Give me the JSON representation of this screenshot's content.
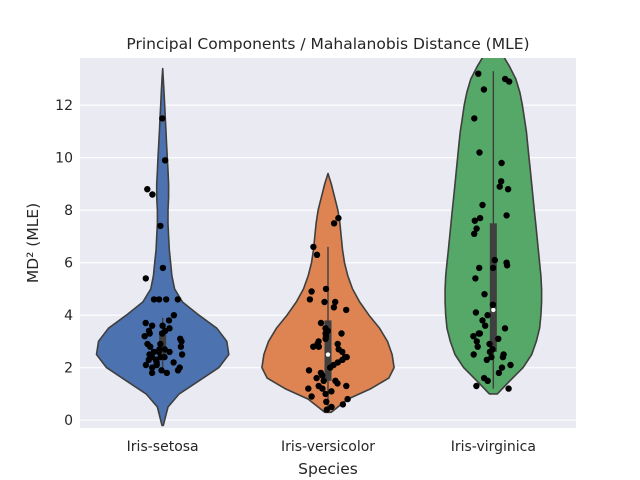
{
  "chart_data": {
    "type": "violin",
    "title": "Principal Components / Mahalanobis Distance (MLE)",
    "xlabel": "Species",
    "ylabel": "MD² (MLE)",
    "categories": [
      "Iris-setosa",
      "Iris-versicolor",
      "Iris-virginica"
    ],
    "ylim": [
      -0.3,
      13.8
    ],
    "yticks": [
      0,
      2,
      4,
      6,
      8,
      10,
      12
    ],
    "grid": true,
    "colors": [
      "#4c72b0",
      "#dd8452",
      "#55a868"
    ],
    "background": "#eaeaf2",
    "violins": [
      {
        "category": "Iris-setosa",
        "color": "#4c72b0",
        "profile": [
          [
            -0.2,
            0.01
          ],
          [
            0.5,
            0.08
          ],
          [
            1.0,
            0.25
          ],
          [
            1.5,
            0.55
          ],
          [
            2.0,
            0.85
          ],
          [
            2.5,
            1.0
          ],
          [
            3.0,
            0.97
          ],
          [
            3.5,
            0.82
          ],
          [
            4.0,
            0.55
          ],
          [
            4.5,
            0.3
          ],
          [
            5.0,
            0.18
          ],
          [
            5.5,
            0.14
          ],
          [
            6.0,
            0.12
          ],
          [
            6.5,
            0.1
          ],
          [
            7.0,
            0.09
          ],
          [
            7.5,
            0.08
          ],
          [
            8.0,
            0.08
          ],
          [
            8.5,
            0.09
          ],
          [
            9.0,
            0.09
          ],
          [
            9.5,
            0.08
          ],
          [
            10.0,
            0.07
          ],
          [
            10.5,
            0.06
          ],
          [
            11.0,
            0.05
          ],
          [
            11.5,
            0.04
          ],
          [
            12.0,
            0.03
          ],
          [
            12.5,
            0.02
          ],
          [
            13.0,
            0.01
          ],
          [
            13.4,
            0.0
          ]
        ],
        "box": {
          "q1": 2.4,
          "q3": 3.4,
          "median": 2.7,
          "whisker_low": 1.8,
          "whisker_high": 3.9
        },
        "points": [
          11.5,
          9.9,
          8.8,
          8.6,
          7.4,
          5.8,
          5.4,
          4.6,
          4.6,
          4.6,
          4.6,
          4.0,
          3.8,
          3.7,
          3.6,
          3.6,
          3.5,
          3.4,
          3.4,
          3.3,
          3.3,
          3.2,
          3.1,
          3.0,
          2.9,
          2.9,
          2.8,
          2.8,
          2.7,
          2.7,
          2.6,
          2.6,
          2.5,
          2.5,
          2.4,
          2.4,
          2.4,
          2.3,
          2.3,
          2.2,
          2.2,
          2.1,
          2.1,
          2.0,
          2.0,
          1.9,
          1.9,
          1.8,
          1.8,
          2.6
        ]
      },
      {
        "category": "Iris-versicolor",
        "color": "#dd8452",
        "profile": [
          [
            0.3,
            0.05
          ],
          [
            0.8,
            0.3
          ],
          [
            1.2,
            0.65
          ],
          [
            1.6,
            0.92
          ],
          [
            2.0,
            1.0
          ],
          [
            2.5,
            0.97
          ],
          [
            3.0,
            0.9
          ],
          [
            3.5,
            0.78
          ],
          [
            4.0,
            0.62
          ],
          [
            4.5,
            0.48
          ],
          [
            5.0,
            0.37
          ],
          [
            5.5,
            0.3
          ],
          [
            6.0,
            0.25
          ],
          [
            6.5,
            0.22
          ],
          [
            7.0,
            0.2
          ],
          [
            7.5,
            0.18
          ],
          [
            8.0,
            0.15
          ],
          [
            8.5,
            0.1
          ],
          [
            9.0,
            0.05
          ],
          [
            9.4,
            0.0
          ]
        ],
        "box": {
          "q1": 1.5,
          "q3": 3.8,
          "median": 2.5,
          "whisker_low": 0.4,
          "whisker_high": 6.6
        },
        "points": [
          7.7,
          7.5,
          6.6,
          6.3,
          5.0,
          4.9,
          4.6,
          4.5,
          4.5,
          4.3,
          4.2,
          3.7,
          3.5,
          3.4,
          3.3,
          3.3,
          3.2,
          3.1,
          3.0,
          2.9,
          2.9,
          2.8,
          2.8,
          2.7,
          2.6,
          2.4,
          2.4,
          2.3,
          2.2,
          2.1,
          2.0,
          1.9,
          1.8,
          1.7,
          1.6,
          1.5,
          1.5,
          1.4,
          1.3,
          1.3,
          1.2,
          1.2,
          1.1,
          1.0,
          0.9,
          0.8,
          0.7,
          0.6,
          0.5,
          0.4
        ]
      },
      {
        "category": "Iris-virginica",
        "color": "#55a868",
        "profile": [
          [
            1.0,
            0.06
          ],
          [
            1.5,
            0.25
          ],
          [
            2.0,
            0.45
          ],
          [
            2.5,
            0.58
          ],
          [
            3.0,
            0.65
          ],
          [
            3.5,
            0.7
          ],
          [
            4.0,
            0.72
          ],
          [
            4.5,
            0.73
          ],
          [
            5.0,
            0.73
          ],
          [
            5.5,
            0.72
          ],
          [
            6.0,
            0.7
          ],
          [
            6.5,
            0.68
          ],
          [
            7.0,
            0.66
          ],
          [
            7.5,
            0.64
          ],
          [
            8.0,
            0.62
          ],
          [
            8.5,
            0.6
          ],
          [
            9.0,
            0.58
          ],
          [
            9.5,
            0.56
          ],
          [
            10.0,
            0.54
          ],
          [
            10.5,
            0.52
          ],
          [
            11.0,
            0.5
          ],
          [
            11.5,
            0.47
          ],
          [
            12.0,
            0.44
          ],
          [
            12.5,
            0.4
          ],
          [
            13.0,
            0.34
          ],
          [
            13.5,
            0.24
          ],
          [
            14.0,
            0.12
          ]
        ],
        "box": {
          "q1": 2.6,
          "q3": 7.5,
          "median": 4.2,
          "whisker_low": 1.2,
          "whisker_high": 13.3
        },
        "points": [
          13.2,
          13.0,
          12.9,
          12.6,
          11.5,
          10.2,
          9.8,
          9.1,
          8.9,
          8.8,
          8.2,
          7.8,
          7.7,
          7.6,
          7.3,
          7.1,
          6.1,
          6.0,
          5.9,
          5.8,
          5.8,
          5.4,
          4.8,
          4.4,
          4.1,
          4.0,
          3.8,
          3.6,
          3.5,
          3.3,
          3.3,
          3.2,
          3.1,
          3.0,
          2.9,
          2.8,
          2.7,
          2.6,
          2.5,
          2.5,
          2.4,
          2.4,
          2.3,
          2.1,
          2.0,
          1.8,
          1.6,
          1.5,
          1.3,
          1.2
        ]
      }
    ]
  }
}
